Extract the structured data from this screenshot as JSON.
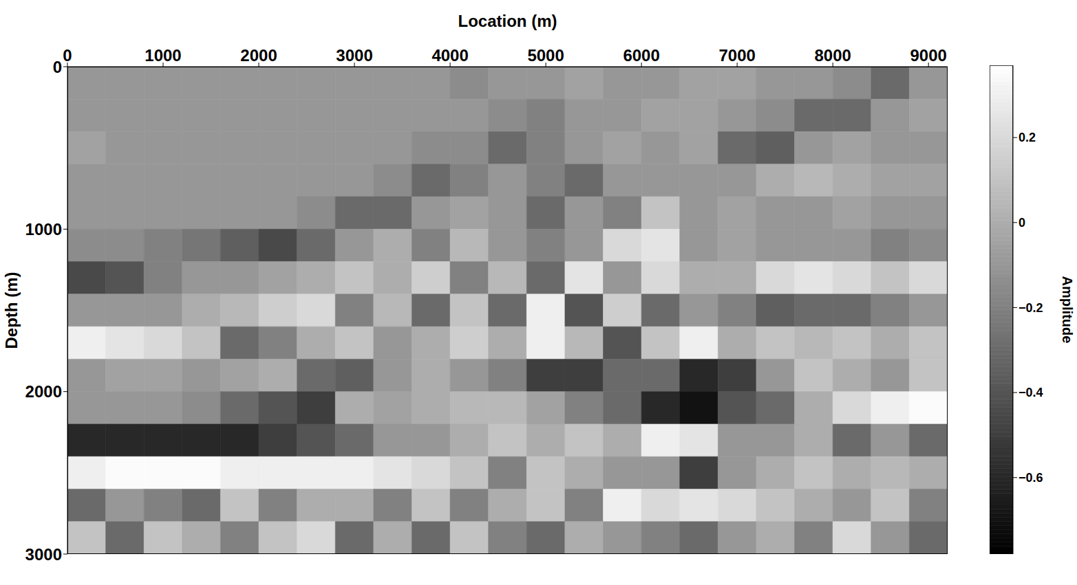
{
  "chart_data": {
    "type": "heatmap",
    "x_label": "Location (m)",
    "y_label": "Depth (m)",
    "xlim": [
      0,
      9200
    ],
    "xticks": [
      0,
      1000,
      2000,
      3000,
      4000,
      5000,
      6000,
      7000,
      8000,
      9000
    ],
    "ylim": [
      0,
      3000
    ],
    "yticks": [
      0,
      1000,
      2000,
      3000
    ],
    "x_edges": [
      0,
      400,
      800,
      1200,
      1600,
      2000,
      2400,
      2800,
      3200,
      3600,
      4000,
      4400,
      4800,
      5200,
      5600,
      6000,
      6400,
      6800,
      7200,
      7600,
      8000,
      8400,
      8800,
      9200
    ],
    "y_edges": [
      0,
      200,
      400,
      600,
      800,
      1000,
      1200,
      1400,
      1600,
      1800,
      2000,
      2200,
      2400,
      2600,
      2800,
      3000
    ],
    "cells": [
      [
        -0.1,
        -0.1,
        -0.1,
        -0.1,
        -0.1,
        -0.1,
        -0.1,
        -0.1,
        -0.1,
        -0.1,
        -0.15,
        -0.1,
        -0.1,
        -0.05,
        -0.1,
        -0.1,
        -0.05,
        -0.05,
        -0.1,
        -0.1,
        -0.15,
        -0.3,
        -0.1
      ],
      [
        -0.1,
        -0.1,
        -0.1,
        -0.1,
        -0.1,
        -0.1,
        -0.1,
        -0.1,
        -0.1,
        -0.1,
        -0.1,
        -0.15,
        -0.2,
        -0.1,
        -0.1,
        -0.05,
        -0.05,
        -0.1,
        -0.15,
        -0.3,
        -0.3,
        -0.1,
        -0.05
      ],
      [
        -0.05,
        -0.1,
        -0.1,
        -0.1,
        -0.1,
        -0.1,
        -0.1,
        -0.1,
        -0.1,
        -0.15,
        -0.15,
        -0.3,
        -0.2,
        -0.1,
        -0.05,
        -0.1,
        -0.05,
        -0.3,
        -0.35,
        -0.1,
        -0.05,
        -0.1,
        -0.1
      ],
      [
        -0.1,
        -0.1,
        -0.1,
        -0.1,
        -0.1,
        -0.1,
        -0.1,
        -0.1,
        -0.15,
        -0.3,
        -0.2,
        -0.1,
        -0.2,
        -0.3,
        -0.1,
        -0.1,
        -0.1,
        -0.1,
        0,
        0.05,
        0,
        -0.05,
        -0.05
      ],
      [
        -0.1,
        -0.1,
        -0.1,
        -0.1,
        -0.1,
        -0.1,
        -0.15,
        -0.3,
        -0.3,
        -0.1,
        -0.05,
        -0.1,
        -0.3,
        -0.1,
        -0.2,
        0.1,
        -0.1,
        -0.05,
        -0.1,
        -0.1,
        -0.05,
        -0.1,
        -0.1
      ],
      [
        -0.15,
        -0.15,
        -0.2,
        -0.25,
        -0.35,
        -0.45,
        -0.3,
        -0.1,
        0,
        -0.2,
        0.05,
        -0.1,
        -0.2,
        -0.1,
        0.2,
        0.25,
        -0.1,
        -0.05,
        -0.1,
        -0.1,
        -0.1,
        -0.2,
        -0.15
      ],
      [
        -0.45,
        -0.4,
        -0.2,
        -0.1,
        -0.1,
        -0.05,
        0,
        0.1,
        0,
        0.15,
        -0.2,
        0.05,
        -0.3,
        0.25,
        -0.1,
        0.2,
        0,
        0,
        0.2,
        0.25,
        0.2,
        0.1,
        0.2
      ],
      [
        -0.1,
        -0.1,
        -0.1,
        0,
        0.05,
        0.15,
        0.2,
        -0.2,
        0.05,
        -0.3,
        0.1,
        -0.3,
        0.3,
        -0.4,
        0.15,
        -0.3,
        -0.1,
        -0.2,
        -0.35,
        -0.3,
        -0.3,
        -0.2,
        -0.1
      ],
      [
        0.3,
        0.25,
        0.2,
        0.1,
        -0.3,
        -0.2,
        0,
        0.1,
        -0.1,
        0,
        0.15,
        0,
        0.3,
        0.05,
        -0.4,
        0.1,
        0.3,
        0,
        0.1,
        0.05,
        0.1,
        0,
        0.1
      ],
      [
        -0.1,
        -0.05,
        -0.05,
        -0.1,
        -0.05,
        0,
        -0.3,
        -0.35,
        -0.1,
        0,
        -0.1,
        -0.2,
        -0.5,
        -0.5,
        -0.3,
        -0.3,
        -0.6,
        -0.5,
        -0.1,
        0.1,
        0,
        -0.1,
        0.1
      ],
      [
        -0.1,
        -0.1,
        -0.1,
        -0.15,
        -0.3,
        -0.4,
        -0.5,
        0,
        -0.05,
        0,
        0.05,
        0.05,
        -0.05,
        -0.2,
        -0.3,
        -0.6,
        -0.7,
        -0.4,
        -0.3,
        0,
        0.2,
        0.3,
        0.35
      ],
      [
        -0.6,
        -0.6,
        -0.6,
        -0.6,
        -0.6,
        -0.5,
        -0.4,
        -0.3,
        -0.1,
        -0.1,
        0,
        0.1,
        0,
        0.1,
        0,
        0.3,
        0.25,
        -0.1,
        -0.1,
        0,
        -0.3,
        -0.1,
        -0.3
      ],
      [
        0.3,
        0.35,
        0.35,
        0.35,
        0.3,
        0.3,
        0.3,
        0.3,
        0.25,
        0.2,
        0.1,
        -0.2,
        0.1,
        0,
        -0.1,
        -0.1,
        -0.5,
        -0.1,
        0,
        0.1,
        0,
        0.05,
        0
      ],
      [
        -0.3,
        -0.1,
        -0.2,
        -0.3,
        0.1,
        -0.2,
        0,
        0,
        -0.2,
        0.1,
        -0.2,
        0,
        0.1,
        -0.2,
        0.3,
        0.2,
        0.25,
        0.2,
        0.1,
        0,
        -0.1,
        0.1,
        -0.2
      ],
      [
        0.1,
        -0.3,
        0.1,
        0,
        -0.2,
        0.1,
        0.2,
        -0.3,
        0,
        -0.3,
        0.1,
        -0.2,
        -0.3,
        0,
        -0.1,
        -0.2,
        -0.3,
        -0.1,
        0,
        -0.2,
        0.2,
        -0.1,
        -0.3
      ]
    ],
    "colorbar": {
      "label": "Amplitude",
      "range": [
        -0.78,
        0.37
      ],
      "ticks": [
        {
          "value": -0.6,
          "label": "−0.6"
        },
        {
          "value": -0.4,
          "label": "−0.4"
        },
        {
          "value": -0.2,
          "label": "−0.2"
        },
        0,
        0.2
      ]
    }
  }
}
